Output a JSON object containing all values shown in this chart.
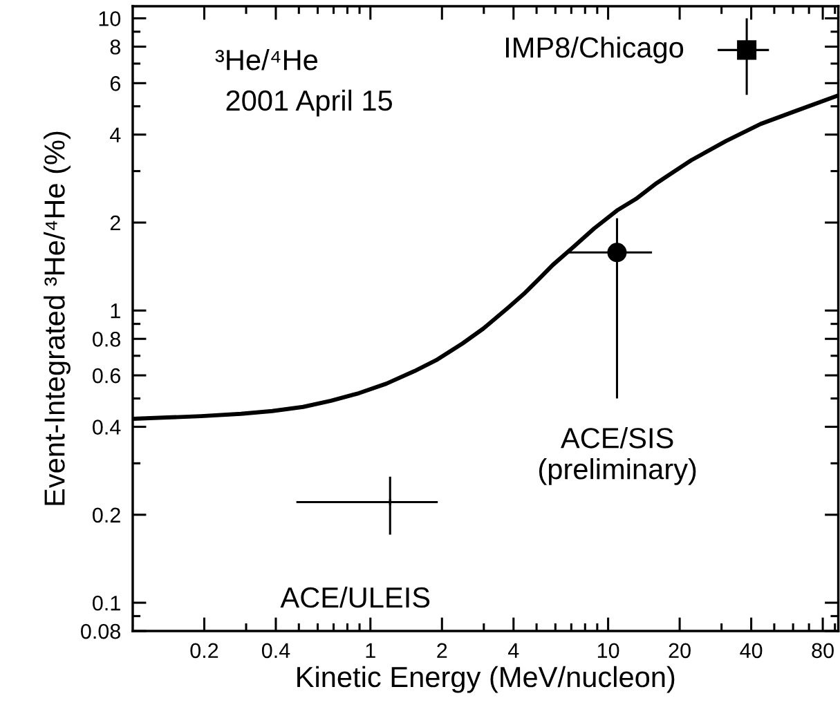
{
  "chart_data": {
    "type": "line",
    "xlabel": "Kinetic Energy (MeV/nucleon)",
    "ylabel": "Event-Integrated ³He/⁴He (%)",
    "annotations": [
      "³He/⁴He",
      "2001 April 15",
      {
        "text": "ACE/ULEIS",
        "x": 1.21,
        "y": 0.221
      },
      "ACE/SIS\n(preliminary)",
      {
        "text": "IMP8/Chicago",
        "x": 38.3,
        "y": 7.79
      }
    ],
    "log": "xy",
    "xlim": [
      0.1,
      93
    ],
    "ylim": [
      0.08,
      11
    ],
    "xticks": [
      0.2,
      0.4,
      1,
      2,
      4,
      10,
      20,
      40,
      80
    ],
    "yticks": [
      0.08,
      0.1,
      0.2,
      0.4,
      0.6,
      0.8,
      1,
      2,
      4,
      6,
      8,
      10
    ],
    "series": [
      {
        "color": "#000000",
        "line_style": "solid",
        "x": [
          0.1,
          0.146,
          0.194,
          0.285,
          0.386,
          0.521,
          0.682,
          0.892,
          1.167,
          1.53,
          1.89,
          2.44,
          2.99,
          3.78,
          4.47,
          5.11,
          5.84,
          7.15,
          8.74,
          10.9,
          13.1,
          16.0,
          22.4,
          31.3,
          43.8,
          61.2,
          93
        ],
        "values": [
          0.426,
          0.431,
          0.435,
          0.443,
          0.453,
          0.468,
          0.491,
          0.521,
          0.562,
          0.62,
          0.676,
          0.771,
          0.868,
          1.02,
          1.15,
          1.28,
          1.43,
          1.65,
          1.91,
          2.2,
          2.41,
          2.73,
          3.27,
          3.8,
          4.35,
          4.81,
          5.45
        ]
      },
      {
        "type": "scatter",
        "color": "#000000",
        "marker": "cross",
        "x": [
          1.21
        ],
        "values": [
          0.221
        ],
        "errors": [
          [
            0.171,
            0.27
          ]
        ],
        "xerrors": [
          [
            0.488,
            1.92
          ]
        ]
      },
      {
        "type": "scatter",
        "color": "#000000",
        "marker": "circle",
        "x": [
          10.9
        ],
        "values": [
          1.58
        ],
        "errors": [
          [
            0.5,
            2.07
          ]
        ],
        "xerrors": [
          [
            6.68,
            15.3
          ]
        ]
      },
      {
        "type": "scatter",
        "color": "#000000",
        "marker": "square",
        "x": [
          38.3
        ],
        "values": [
          7.79
        ],
        "errors": [
          [
            5.47,
            10.0
          ]
        ],
        "xerrors": [
          [
            28.9,
            47.5
          ]
        ]
      }
    ]
  }
}
